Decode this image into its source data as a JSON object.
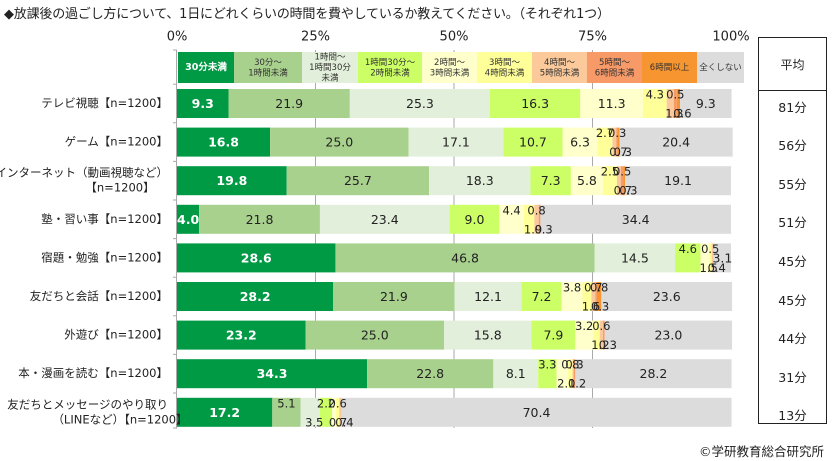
{
  "page": {
    "title": "◆放課後の過ごし方について、1日にどれくらいの時間を費やしているか教えてください。（それぞれ1つ）",
    "copyright": "©学研教育総合研究所",
    "average_header": "平均"
  },
  "chart_data": {
    "type": "bar",
    "orientation": "horizontal",
    "stacked": "percent",
    "title": "◆放課後の過ごし方について、1日にどれくらいの時間を費やしているか教えてください。（それぞれ1つ）",
    "xlabel": "",
    "ylabel": "",
    "xlim": [
      0,
      100
    ],
    "x_ticks": [
      "0%",
      "25%",
      "50%",
      "75%",
      "100%"
    ],
    "grid": true,
    "legend_position": "top",
    "categories": [
      "テレビ視聴【n=1200】",
      "ゲーム【n=1200】",
      "インターネット（動画視聴など）\n【n=1200】",
      "塾・習い事【n=1200】",
      "宿題・勉強【n=1200】",
      "友だちと会話【n=1200】",
      "外遊び【n=1200】",
      "本・漫画を読む【n=1200】",
      "友だちとメッセージのやり取り\n（LINEなど）【n=1200】"
    ],
    "series": [
      {
        "name": "30分未満",
        "legend_label": "30分未満",
        "color": "#009944",
        "label_color": "#ffffff",
        "values": [
          9.3,
          16.8,
          19.8,
          4.0,
          28.6,
          28.2,
          23.2,
          34.3,
          17.2
        ]
      },
      {
        "name": "30分～1時間未満",
        "legend_label": "30分～\n1時間未満",
        "color": "#a9d18e",
        "label_color": "#222222",
        "values": [
          21.9,
          25.0,
          25.7,
          21.8,
          46.8,
          21.9,
          25.0,
          22.8,
          5.1
        ]
      },
      {
        "name": "1時間～1時間30分未満",
        "legend_label": "1時間～\n1時間30分\n未満",
        "color": "#e2efda",
        "label_color": "#222222",
        "values": [
          25.3,
          17.1,
          18.3,
          23.4,
          14.5,
          12.1,
          15.8,
          8.1,
          3.5
        ]
      },
      {
        "name": "1時間30分～2時間未満",
        "legend_label": "1時間30分～\n2時間未満",
        "color": "#ccff66",
        "label_color": "#222222",
        "values": [
          16.3,
          10.7,
          7.3,
          9.0,
          4.6,
          7.2,
          7.9,
          3.3,
          2.2
        ]
      },
      {
        "name": "2時間～3時間未満",
        "legend_label": "2時間～\n3時間未満",
        "color": "#ffffcc",
        "label_color": "#222222",
        "values": [
          11.3,
          6.3,
          5.8,
          4.4,
          1.5,
          3.8,
          3.2,
          2.1,
          0.7
        ]
      },
      {
        "name": "3時間～4時間未満",
        "legend_label": "3時間～\n4時間未満",
        "color": "#ffff99",
        "label_color": "#222222",
        "values": [
          4.3,
          2.7,
          2.5,
          1.9,
          0.5,
          1.6,
          1.2,
          0.8,
          0.6
        ]
      },
      {
        "name": "4時間～5時間未満",
        "legend_label": "4時間～\n5時間未満",
        "color": "#fbc99a",
        "label_color": "#222222",
        "values": [
          1.3,
          0.7,
          0.7,
          0.8,
          0.4,
          0.7,
          0.6,
          0.2,
          0.4
        ]
      },
      {
        "name": "5時間～6時間未満",
        "legend_label": "5時間～\n6時間未満",
        "color": "#f79a68",
        "label_color": "#222222",
        "values": [
          0.5,
          0.3,
          0.5,
          0.3,
          0.0,
          0.3,
          0.3,
          0.3,
          0.0
        ]
      },
      {
        "name": "6時間以上",
        "legend_label": "6時間以上",
        "color": "#f79530",
        "label_color": "#222222",
        "values": [
          0.6,
          0.3,
          0.3,
          0.0,
          0.0,
          0.8,
          0.0,
          0.0,
          0.0
        ]
      },
      {
        "name": "全くしない",
        "legend_label": "全くしない",
        "color": "#dcdcdc",
        "label_color": "#222222",
        "values": [
          9.3,
          20.4,
          19.1,
          34.4,
          3.1,
          23.6,
          23.0,
          28.2,
          70.4
        ]
      }
    ],
    "data_labels": [
      [
        "9.3",
        "21.9",
        "25.3",
        "16.3",
        "11.3",
        "4.3",
        "1.3",
        "0.5",
        "0.6",
        "9.3"
      ],
      [
        "16.8",
        "25.0",
        "17.1",
        "10.7",
        "6.3",
        "2.7",
        "0.7",
        "0.3",
        "0.3",
        "20.4"
      ],
      [
        "19.8",
        "25.7",
        "18.3",
        "7.3",
        "5.8",
        "2.5",
        "0.7",
        "0.5",
        "0.3",
        "19.1"
      ],
      [
        "4.0",
        "21.8",
        "23.4",
        "9.0",
        "4.4",
        "1.9",
        "0.8",
        "0.3",
        "",
        "34.4"
      ],
      [
        "28.6",
        "46.8",
        "14.5",
        "4.6",
        "1.5",
        "0.5",
        "0.4",
        "",
        "",
        "3.1"
      ],
      [
        "28.2",
        "21.9",
        "12.1",
        "7.2",
        "3.8",
        "1.6",
        "0.7",
        "0.3",
        "0.8",
        "23.6"
      ],
      [
        "23.2",
        "25.0",
        "15.8",
        "7.9",
        "3.2",
        "1.2",
        "0.6",
        "0.3",
        "",
        "23.0"
      ],
      [
        "34.3",
        "22.8",
        "8.1",
        "3.3",
        "2.1",
        "0.8",
        "0.2",
        "0.3",
        "",
        "28.2"
      ],
      [
        "17.2",
        "5.1",
        "3.5",
        "2.2",
        "0.7",
        "0.6",
        "0.4",
        "",
        "",
        "70.4"
      ]
    ],
    "averages": [
      "81分",
      "56分",
      "55分",
      "51分",
      "45分",
      "45分",
      "44分",
      "31分",
      "13分"
    ]
  }
}
